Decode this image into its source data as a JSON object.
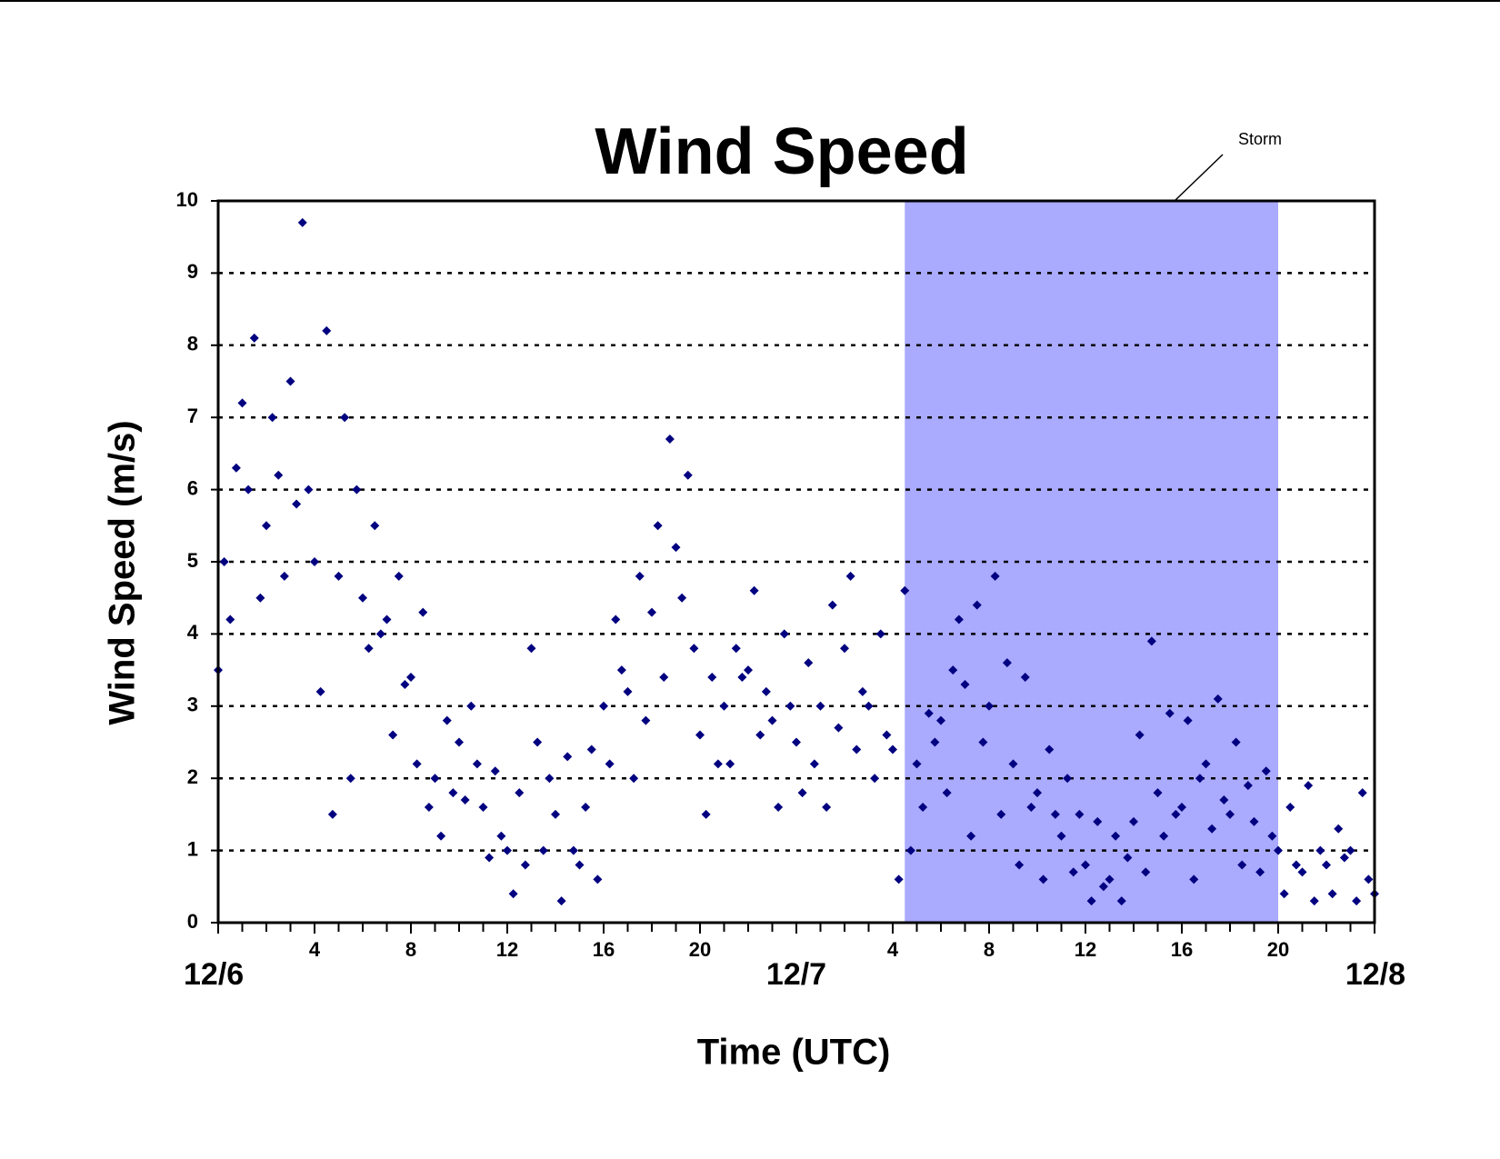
{
  "chart_data": {
    "type": "scatter",
    "title": "Wind Speed",
    "x_label": "Time (UTC)",
    "y_label": "Wind Speed (m/s)",
    "annotation": "Storm",
    "storm_span": [
      28.5,
      44
    ],
    "storm_color": "#aaaaff",
    "color": "#000080",
    "grid": true,
    "xlim": [
      0,
      48
    ],
    "ylim": [
      0,
      10
    ],
    "yticks": [
      0,
      1,
      2,
      3,
      4,
      5,
      6,
      7,
      8,
      9,
      10
    ],
    "xticks": [
      {
        "value": 0,
        "label": "12/6"
      },
      4,
      8,
      12,
      16,
      20,
      {
        "value": 24,
        "label": "12/7"
      },
      {
        "value": 28,
        "label": "4"
      },
      {
        "value": 32,
        "label": "8"
      },
      {
        "value": 36,
        "label": "12"
      },
      {
        "value": 40,
        "label": "16"
      },
      {
        "value": 44,
        "label": "20"
      },
      {
        "value": 48,
        "label": "12/8"
      }
    ],
    "xminorticks": [
      1,
      2,
      3,
      5,
      6,
      7,
      9,
      10,
      11,
      13,
      14,
      15,
      17,
      18,
      19,
      21,
      22,
      23,
      25,
      26,
      27,
      29,
      30,
      31,
      33,
      34,
      35,
      37,
      38,
      39,
      41,
      42,
      43,
      45,
      46,
      47
    ],
    "x": [
      0,
      0.25,
      0.5,
      0.75,
      1,
      1.25,
      1.5,
      1.75,
      2,
      2.25,
      2.5,
      2.75,
      3,
      3.25,
      3.5,
      3.75,
      4,
      4.25,
      4.5,
      4.75,
      5,
      5.25,
      5.5,
      5.75,
      6,
      6.25,
      6.5,
      6.75,
      7,
      7.25,
      7.5,
      7.75,
      8,
      8.25,
      8.5,
      8.75,
      9,
      9.25,
      9.5,
      9.75,
      10,
      10.25,
      10.5,
      10.75,
      11,
      11.25,
      11.5,
      11.75,
      12,
      12.25,
      12.5,
      12.75,
      13,
      13.25,
      13.5,
      13.75,
      14,
      14.25,
      14.5,
      14.75,
      15,
      15.25,
      15.5,
      15.75,
      16,
      16.25,
      16.5,
      16.75,
      17,
      17.25,
      17.5,
      17.75,
      18,
      18.25,
      18.5,
      18.75,
      19,
      19.25,
      19.5,
      19.75,
      20,
      20.25,
      20.5,
      20.75,
      21,
      21.25,
      21.5,
      21.75,
      22,
      22.25,
      22.5,
      22.75,
      23,
      23.25,
      23.5,
      23.75,
      24,
      24.25,
      24.5,
      24.75,
      25,
      25.25,
      25.5,
      25.75,
      26,
      26.25,
      26.5,
      26.75,
      27,
      27.25,
      27.5,
      27.75,
      28,
      28.25,
      28.5,
      28.75,
      29,
      29.25,
      29.5,
      29.75,
      30,
      30.25,
      30.5,
      30.75,
      31,
      31.25,
      31.5,
      31.75,
      32,
      32.25,
      32.5,
      32.75,
      33,
      33.25,
      33.5,
      33.75,
      34,
      34.25,
      34.5,
      34.75,
      35,
      35.25,
      35.5,
      35.75,
      36,
      36.25,
      36.5,
      36.75,
      37,
      37.25,
      37.5,
      37.75,
      38,
      38.25,
      38.5,
      38.75,
      39,
      39.25,
      39.5,
      39.75,
      40,
      40.25,
      40.5,
      40.75,
      41,
      41.25,
      41.5,
      41.75,
      42,
      42.25,
      42.5,
      42.75,
      43,
      43.25,
      43.5,
      43.75,
      44,
      44.25,
      44.5,
      44.75,
      45,
      45.25,
      45.5,
      45.75,
      46,
      46.25,
      46.5,
      46.75,
      47,
      47.25,
      47.5,
      47.75,
      48
    ],
    "values": [
      3.5,
      5.0,
      4.2,
      6.3,
      7.2,
      6.0,
      8.1,
      4.5,
      5.5,
      7.0,
      6.2,
      4.8,
      7.5,
      5.8,
      9.7,
      6.0,
      5.0,
      3.2,
      8.2,
      1.5,
      4.8,
      7.0,
      2.0,
      6.0,
      4.5,
      3.8,
      5.5,
      4.0,
      4.2,
      2.6,
      4.8,
      3.3,
      3.4,
      2.2,
      4.3,
      1.6,
      2.0,
      1.2,
      2.8,
      1.8,
      2.5,
      1.7,
      3.0,
      2.2,
      1.6,
      0.9,
      2.1,
      1.2,
      1.0,
      0.4,
      1.8,
      0.8,
      3.8,
      2.5,
      1.0,
      2.0,
      1.5,
      0.3,
      2.3,
      1.0,
      0.8,
      1.6,
      2.4,
      0.6,
      3.0,
      2.2,
      4.2,
      3.5,
      3.2,
      2.0,
      4.8,
      2.8,
      4.3,
      5.5,
      3.4,
      6.7,
      5.2,
      4.5,
      6.2,
      3.8,
      2.6,
      1.5,
      3.4,
      2.2,
      3.0,
      2.2,
      3.8,
      3.4,
      3.5,
      4.6,
      2.6,
      3.2,
      2.8,
      1.6,
      4.0,
      3.0,
      2.5,
      1.8,
      3.6,
      2.2,
      3.0,
      1.6,
      4.4,
      2.7,
      3.8,
      4.8,
      2.4,
      3.2,
      3.0,
      2.0,
      4.0,
      2.6,
      2.4,
      0.6,
      4.6,
      1.0,
      2.2,
      1.6,
      2.9,
      2.5,
      2.8,
      1.8,
      3.5,
      4.2,
      3.3,
      1.2,
      4.4,
      2.5,
      3.0,
      4.8,
      1.5,
      3.6,
      2.2,
      0.8,
      3.4,
      1.6,
      1.8,
      0.6,
      2.4,
      1.5,
      1.2,
      2.0,
      0.7,
      1.5,
      0.8,
      0.3,
      1.4,
      0.5,
      0.6,
      1.2,
      0.3,
      0.9,
      1.4,
      2.6,
      0.7,
      3.9,
      1.8,
      1.2,
      2.9,
      1.5,
      1.6,
      2.8,
      0.6,
      2.0,
      2.2,
      1.3,
      3.1,
      1.7,
      1.5,
      2.5,
      0.8,
      1.9,
      1.4,
      0.7,
      2.1,
      1.2,
      1.0,
      0.4,
      1.6,
      0.8,
      0.7,
      1.9,
      0.3,
      1.0,
      0.8,
      0.4,
      1.3,
      0.9,
      1.0,
      0.3,
      1.8,
      0.6,
      0.4
    ]
  }
}
